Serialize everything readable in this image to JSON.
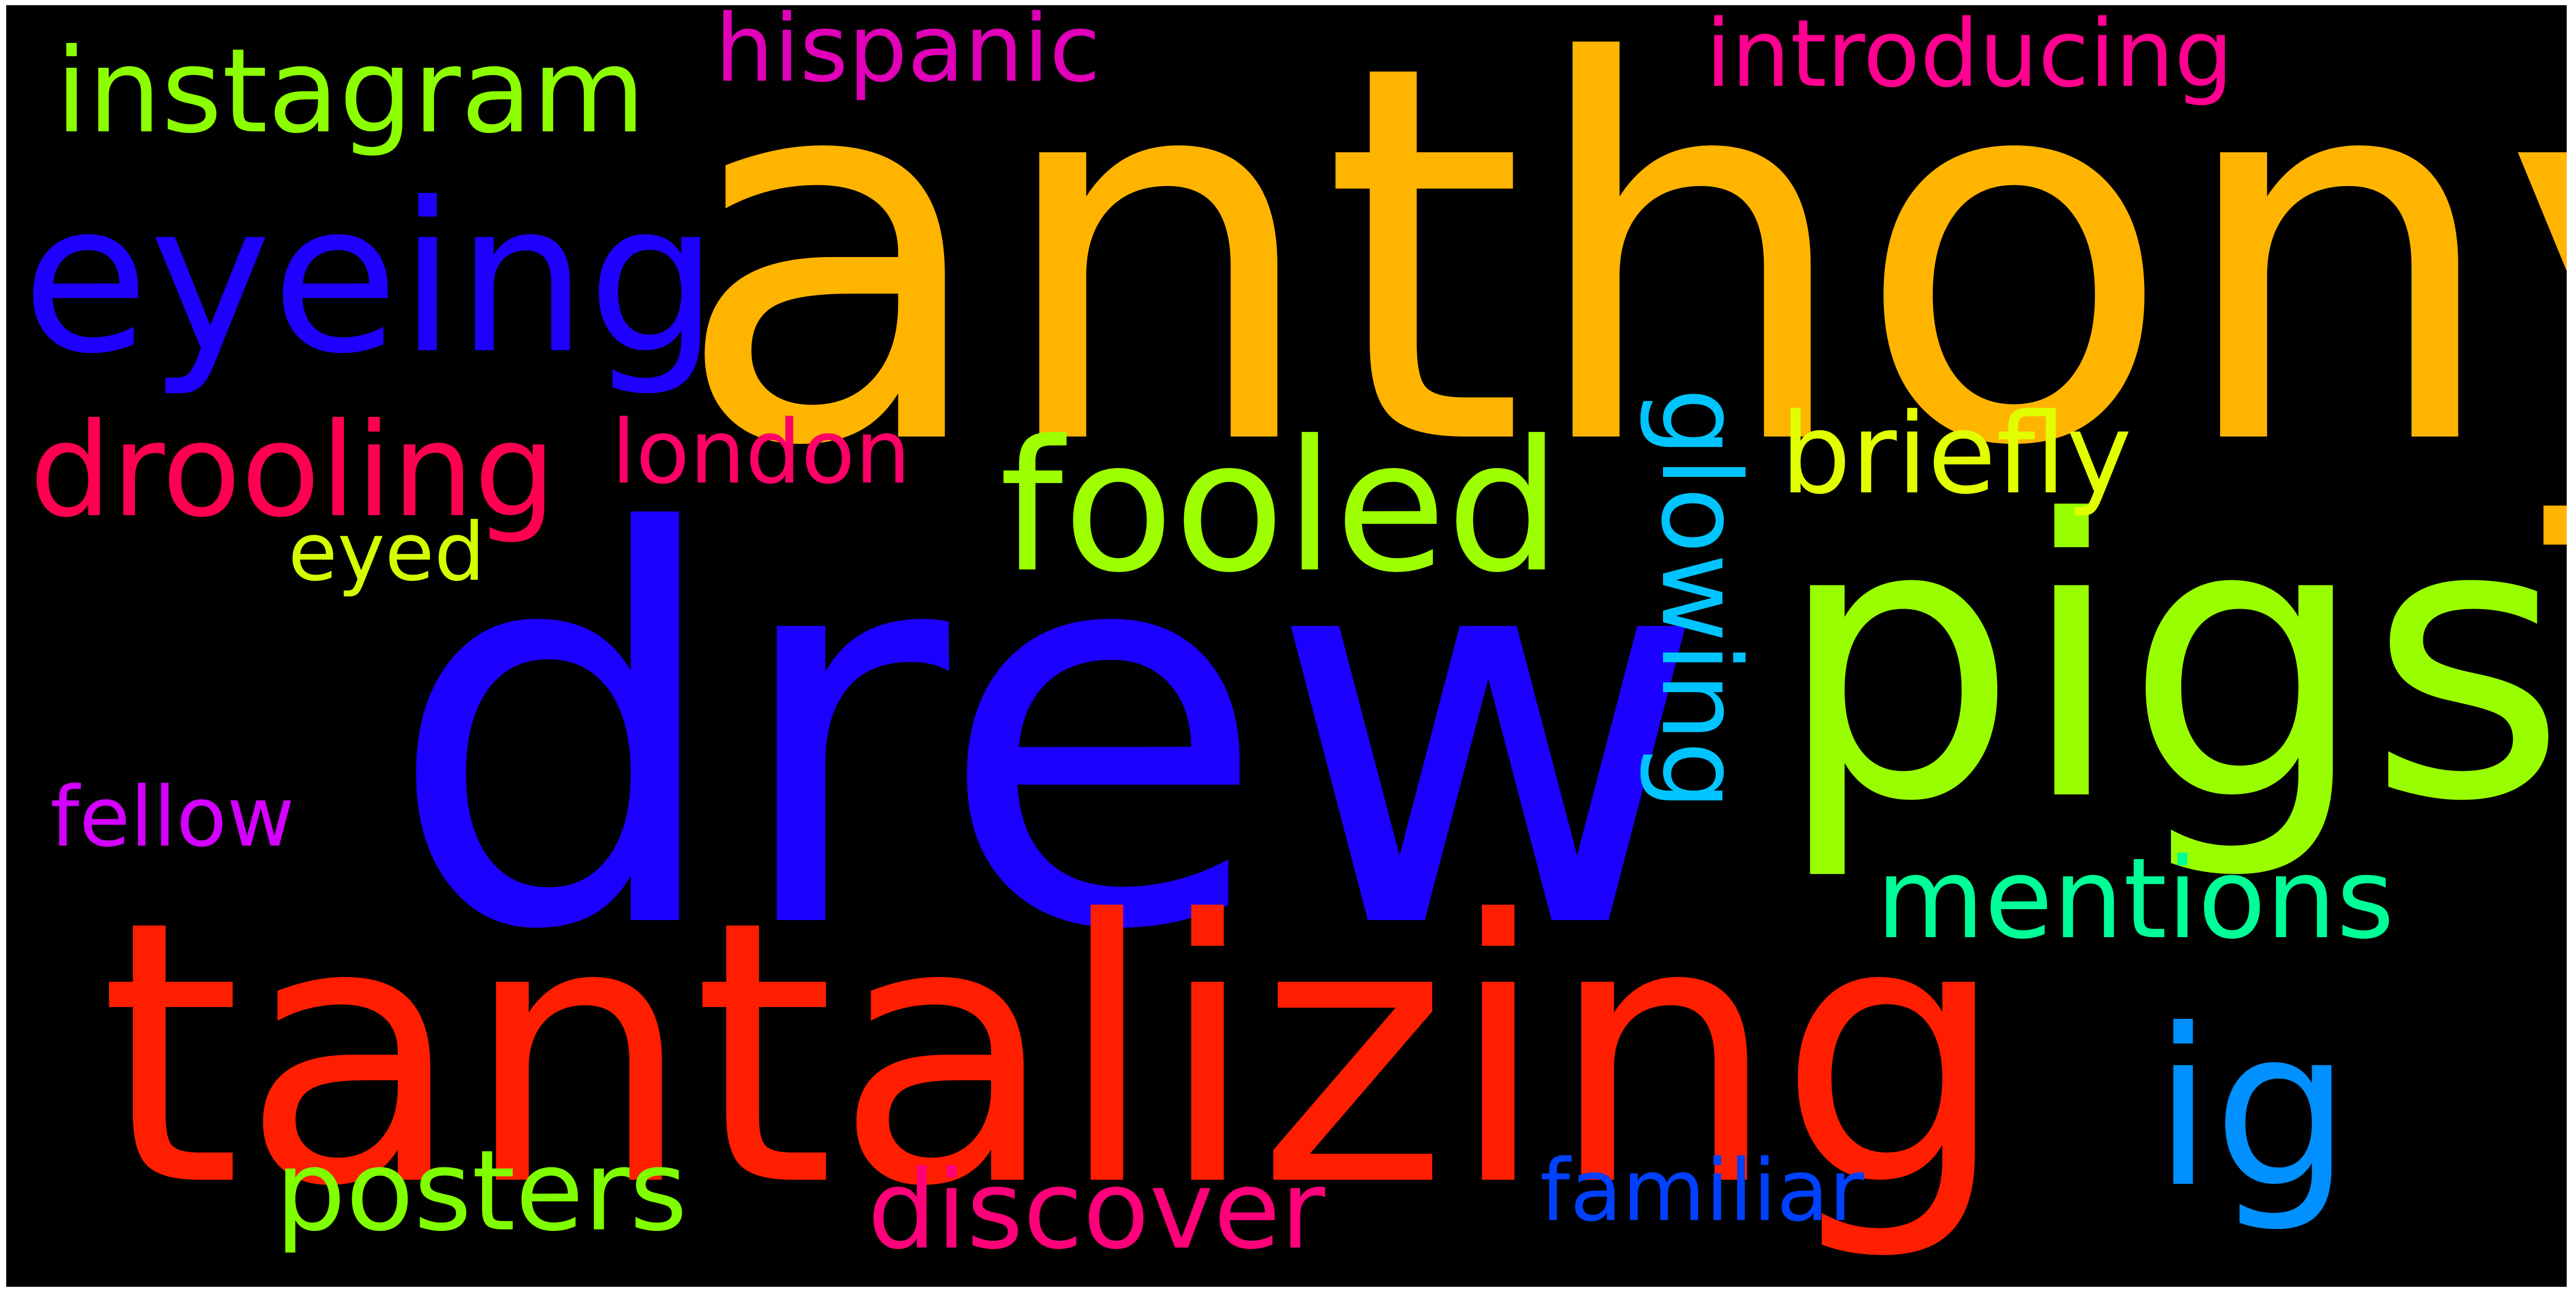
{
  "words": [
    {
      "text": "anthony",
      "color": "#ffb400"
    },
    {
      "text": "drew",
      "color": "#1c00ff"
    },
    {
      "text": "tantalizing",
      "color": "#ff1e00"
    },
    {
      "text": "pigs",
      "color": "#99ff00"
    },
    {
      "text": "eyeing",
      "color": "#1e00ff"
    },
    {
      "text": "fooled",
      "color": "#9dff00"
    },
    {
      "text": "instagram",
      "color": "#8cff00"
    },
    {
      "text": "ig",
      "color": "#0090ff"
    },
    {
      "text": "drooling",
      "color": "#ff0050"
    },
    {
      "text": "briefly",
      "color": "#e2ff00"
    },
    {
      "text": "mentions",
      "color": "#00ff96"
    },
    {
      "text": "posters",
      "color": "#80ff00"
    },
    {
      "text": "discover",
      "color": "#ff007a"
    },
    {
      "text": "glowing",
      "color": "#00c4ff"
    },
    {
      "text": "hispanic",
      "color": "#e000b8"
    },
    {
      "text": "introducing",
      "color": "#ff0090"
    },
    {
      "text": "london",
      "color": "#ff0068"
    },
    {
      "text": "familiar",
      "color": "#0040ff"
    },
    {
      "text": "fellow",
      "color": "#d400ff"
    },
    {
      "text": "eyed",
      "color": "#d2ff00"
    }
  ]
}
